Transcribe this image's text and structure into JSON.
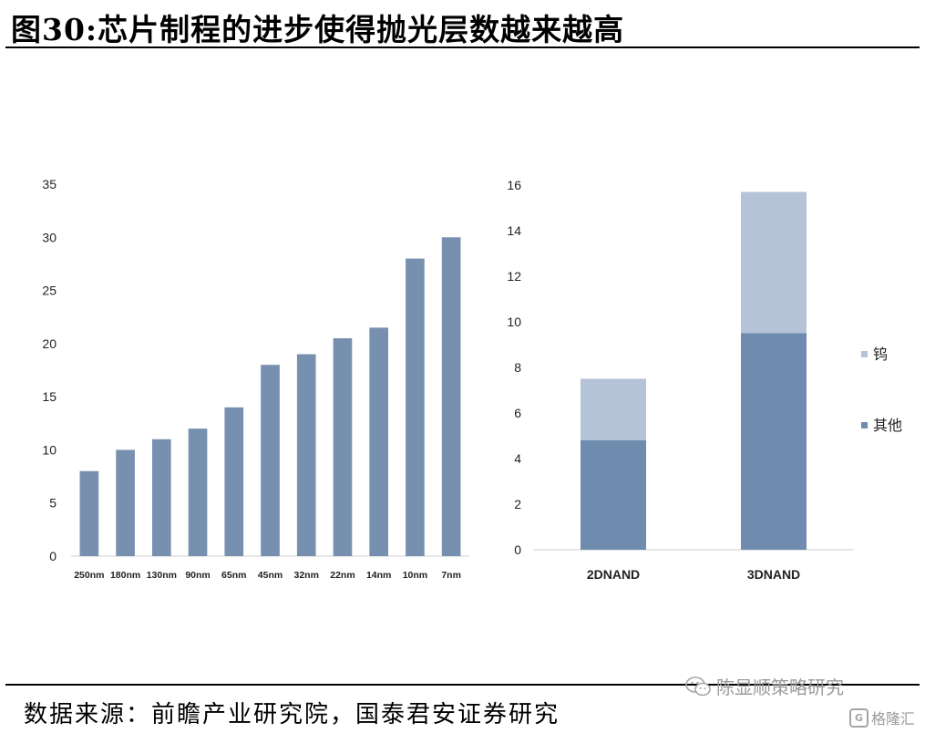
{
  "title": "图30:芯片制程的进步使得抛光层数越来越高",
  "source": "数据来源：前瞻产业研究院，国泰君安证券研究",
  "watermark": {
    "main": "陈显顺策略研究",
    "sub": "格隆汇",
    "icon": "wechat-icon",
    "sub_icon": "glh-logo-icon"
  },
  "chart_data": [
    {
      "type": "bar",
      "categories": [
        "250nm",
        "180nm",
        "130nm",
        "90nm",
        "65nm",
        "45nm",
        "32nm",
        "22nm",
        "14nm",
        "10nm",
        "7nm"
      ],
      "values": [
        8,
        10,
        11,
        12,
        14,
        18,
        19,
        20.5,
        21.5,
        28,
        30
      ],
      "ylim": [
        0,
        35
      ],
      "yticks": [
        0,
        5,
        10,
        15,
        20,
        25,
        30,
        35
      ],
      "color": "#7890b0",
      "grid": false
    },
    {
      "type": "bar",
      "stacked": true,
      "categories": [
        "2DNAND",
        "3DNAND"
      ],
      "series": [
        {
          "name": "其他",
          "values": [
            4.8,
            9.5
          ],
          "color": "#6f8bae"
        },
        {
          "name": "钨",
          "values": [
            2.7,
            6.2
          ],
          "color": "#b4c3d7"
        }
      ],
      "ylim": [
        0,
        16
      ],
      "yticks": [
        0,
        2,
        4,
        6,
        8,
        10,
        12,
        14,
        16
      ],
      "legend": "right",
      "grid": false
    }
  ]
}
